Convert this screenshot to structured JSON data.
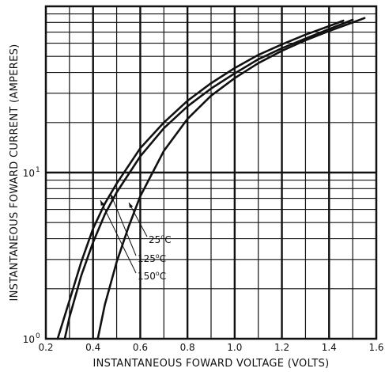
{
  "chart_data": {
    "type": "line",
    "title": "",
    "xlabel": "INSTANTANEOUS FOWARD VOLTAGE (VOLTS)",
    "ylabel": "INSTANTANEOUS FOWARD CURRENT (AMPERES)",
    "xlim": [
      0.2,
      1.6
    ],
    "ylim": [
      1,
      100
    ],
    "yscale": "log",
    "grid": true,
    "x_ticks": [
      {
        "value": 0.2,
        "label": "0.2"
      },
      {
        "value": 0.4,
        "label": "0.4"
      },
      {
        "value": 0.6,
        "label": "0.6"
      },
      {
        "value": 0.8,
        "label": "0.8"
      },
      {
        "value": 1.0,
        "label": "1.0"
      },
      {
        "value": 1.2,
        "label": "1.2"
      },
      {
        "value": 1.4,
        "label": "1.4"
      },
      {
        "value": 1.6,
        "label": "1.6"
      }
    ],
    "y_ticks": [
      {
        "value": 1,
        "base": "10",
        "exp": "0"
      },
      {
        "value": 10,
        "base": "10",
        "exp": "1"
      }
    ],
    "series": [
      {
        "name": "25°C",
        "name_base": "25",
        "name_unit": "C",
        "x": [
          0.42,
          0.45,
          0.5,
          0.55,
          0.6,
          0.7,
          0.8,
          0.9,
          1.0,
          1.1,
          1.2,
          1.3,
          1.4,
          1.5,
          1.55
        ],
        "y": [
          1.0,
          1.6,
          2.9,
          4.7,
          7.2,
          13.5,
          21.0,
          29.0,
          37.0,
          45.5,
          54.0,
          62.5,
          71.0,
          80.0,
          85.0
        ]
      },
      {
        "name": "125°C",
        "name_base": "125",
        "name_unit": "C",
        "x": [
          0.28,
          0.3,
          0.35,
          0.4,
          0.45,
          0.5,
          0.6,
          0.7,
          0.8,
          0.9,
          1.0,
          1.1,
          1.2,
          1.3,
          1.4,
          1.5
        ],
        "y": [
          1.0,
          1.35,
          2.4,
          3.8,
          5.6,
          7.6,
          12.5,
          18.5,
          25.0,
          32.0,
          39.5,
          48.0,
          56.0,
          64.0,
          73.0,
          83.0
        ]
      },
      {
        "name": "150°C",
        "name_base": "150",
        "name_unit": "C",
        "x": [
          0.25,
          0.3,
          0.35,
          0.4,
          0.45,
          0.5,
          0.6,
          0.7,
          0.8,
          0.9,
          1.0,
          1.1,
          1.2,
          1.3,
          1.4,
          1.46
        ],
        "y": [
          1.0,
          1.7,
          2.9,
          4.6,
          6.5,
          8.6,
          14.0,
          20.0,
          27.0,
          34.5,
          42.5,
          51.0,
          59.0,
          67.5,
          76.0,
          82.0
        ]
      }
    ]
  }
}
